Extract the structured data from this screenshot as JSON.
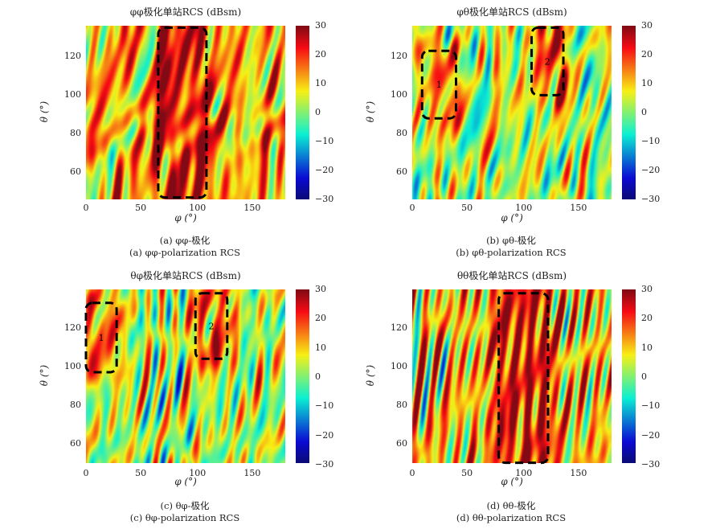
{
  "chart_data": [
    {
      "id": "a",
      "type": "heatmap",
      "title": "φφ极化单站RCS (dBsm)",
      "xlabel": "φ (°)",
      "ylabel": "θ (°)",
      "caption_cn": "(a) φφ-极化",
      "caption_en": "(a) φφ-polarization RCS",
      "xlim": [
        0,
        182
      ],
      "ylim": [
        46,
        136
      ],
      "xticks": [
        0,
        50,
        100,
        150
      ],
      "yticks": [
        60,
        80,
        100,
        120
      ],
      "clim": [
        -30,
        30
      ],
      "cticks": [
        30,
        20,
        10,
        0,
        -10,
        -20,
        -30
      ],
      "base_level": 11,
      "regions": [
        {
          "phi": [
            66,
            110
          ],
          "theta": [
            46,
            136
          ],
          "level": 22
        }
      ],
      "boxes": [
        {
          "phi": [
            66,
            110
          ],
          "theta": [
            47,
            135
          ],
          "label": ""
        }
      ]
    },
    {
      "id": "b",
      "type": "heatmap",
      "title": "φθ极化单站RCS (dBsm)",
      "xlabel": "φ (°)",
      "ylabel": "θ (°)",
      "caption_cn": "(b) φθ-极化",
      "caption_en": "(b) φθ-polarization RCS",
      "xlim": [
        0,
        182
      ],
      "ylim": [
        46,
        136
      ],
      "xticks": [
        0,
        50,
        100,
        150
      ],
      "yticks": [
        60,
        80,
        100,
        120
      ],
      "clim": [
        -30,
        30
      ],
      "cticks": [
        30,
        20,
        10,
        0,
        -10,
        -20,
        -30
      ],
      "base_level": 3,
      "regions": [
        {
          "phi": [
            9,
            40
          ],
          "theta": [
            88,
            123
          ],
          "level": 12
        },
        {
          "phi": [
            109,
            138
          ],
          "theta": [
            100,
            136
          ],
          "level": 15
        }
      ],
      "boxes": [
        {
          "phi": [
            9,
            40
          ],
          "theta": [
            88,
            123
          ],
          "label": "1"
        },
        {
          "phi": [
            109,
            138
          ],
          "theta": [
            100,
            135
          ],
          "label": "2"
        }
      ]
    },
    {
      "id": "c",
      "type": "heatmap",
      "title": "θφ极化单站RCS (dBsm)",
      "xlabel": "φ (°)",
      "ylabel": "θ (°)",
      "caption_cn": "(c) θφ-极化",
      "caption_en": "(c) θφ-polarization RCS",
      "xlim": [
        0,
        182
      ],
      "ylim": [
        49,
        140
      ],
      "xticks": [
        0,
        50,
        100,
        150
      ],
      "yticks": [
        60,
        80,
        100,
        120
      ],
      "clim": [
        -30,
        30
      ],
      "cticks": [
        30,
        20,
        10,
        0,
        -10,
        -20,
        -30
      ],
      "base_level": 3,
      "regions": [
        {
          "phi": [
            0,
            28
          ],
          "theta": [
            97,
            133
          ],
          "level": 14
        },
        {
          "phi": [
            100,
            129
          ],
          "theta": [
            104,
            138
          ],
          "level": 15
        }
      ],
      "boxes": [
        {
          "phi": [
            0,
            28
          ],
          "theta": [
            97,
            133
          ],
          "label": "1"
        },
        {
          "phi": [
            100,
            129
          ],
          "theta": [
            104,
            138
          ],
          "label": "2"
        }
      ]
    },
    {
      "id": "d",
      "type": "heatmap",
      "title": "θθ极化单站RCS (dBsm)",
      "xlabel": "φ (°)",
      "ylabel": "θ (°)",
      "caption_cn": "(d) θθ-极化",
      "caption_en": "(d) θθ-polarization RCS",
      "xlim": [
        0,
        182
      ],
      "ylim": [
        49,
        140
      ],
      "xticks": [
        0,
        50,
        100,
        150
      ],
      "yticks": [
        60,
        80,
        100,
        120
      ],
      "clim": [
        -30,
        30
      ],
      "cticks": [
        30,
        20,
        10,
        0,
        -10,
        -20,
        -30
      ],
      "base_level": 10,
      "regions": [
        {
          "phi": [
            79,
            124
          ],
          "theta": [
            49,
            140
          ],
          "level": 22
        }
      ],
      "boxes": [
        {
          "phi": [
            79,
            124
          ],
          "theta": [
            50,
            138
          ],
          "label": ""
        }
      ]
    }
  ]
}
